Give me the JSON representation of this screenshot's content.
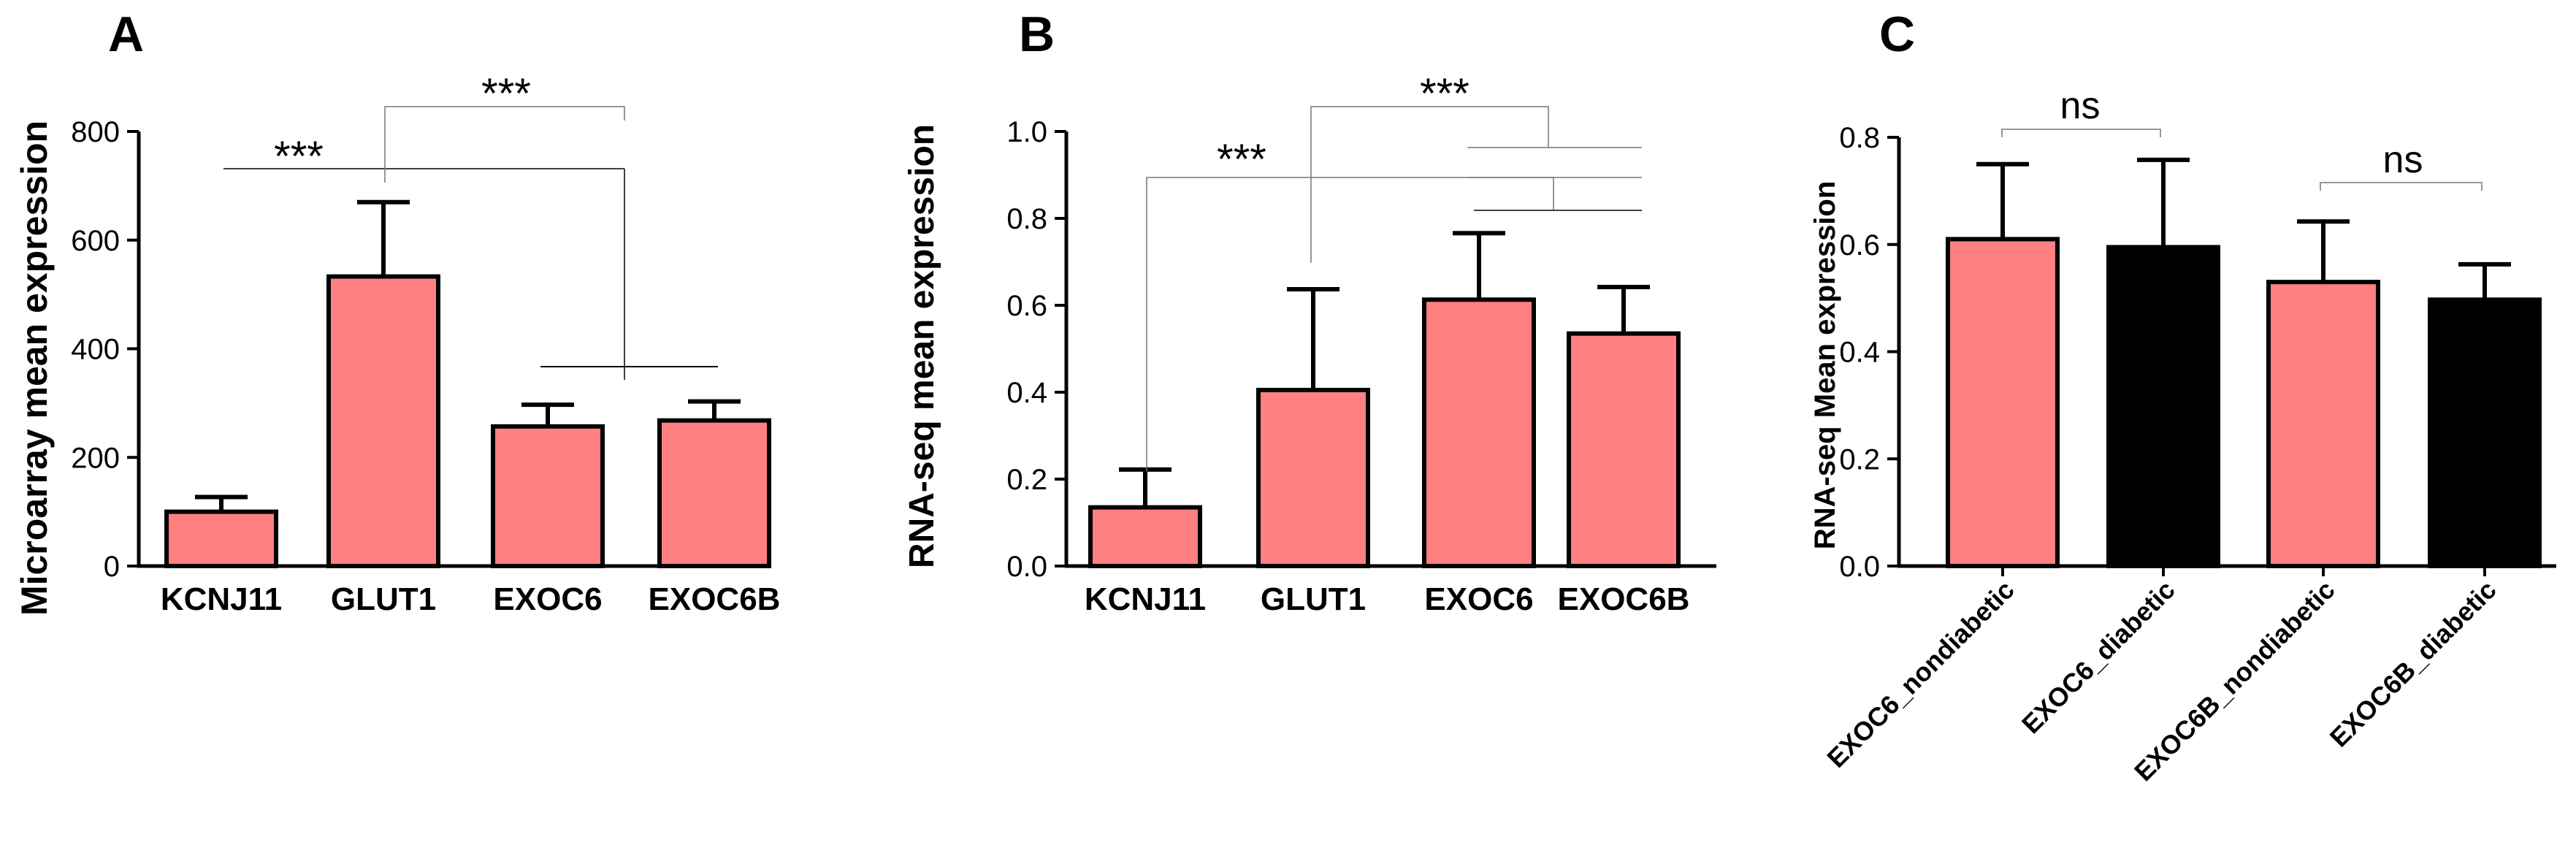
{
  "chart_data": [
    {
      "panel": "A",
      "type": "bar",
      "categories": [
        "KCNJ11",
        "GLUT1",
        "EXOC6",
        "EXOC6B"
      ],
      "values": [
        100,
        533,
        257,
        268
      ],
      "errors": [
        27,
        137,
        40,
        35
      ],
      "colors": [
        "#ff8080",
        "#ff8080",
        "#ff8080",
        "#ff8080"
      ],
      "ylabel": "Microarray mean expression",
      "ylim": [
        0,
        800
      ],
      "yticks": [
        0,
        200,
        400,
        600,
        800
      ],
      "yticklabels": [
        "0",
        "200",
        "400",
        "600",
        "800"
      ],
      "annotations": [
        "***",
        "***"
      ]
    },
    {
      "panel": "B",
      "type": "bar",
      "categories": [
        "KCNJ11",
        "GLUT1",
        "EXOC6",
        "EXOC6B"
      ],
      "values": [
        0.135,
        0.405,
        0.613,
        0.535
      ],
      "errors": [
        0.087,
        0.232,
        0.153,
        0.107
      ],
      "colors": [
        "#ff8080",
        "#ff8080",
        "#ff8080",
        "#ff8080"
      ],
      "ylabel": "RNA-seq mean expression",
      "ylim": [
        0,
        1.0
      ],
      "yticks": [
        0,
        0.2,
        0.4,
        0.6,
        0.8,
        1.0
      ],
      "yticklabels": [
        "0.0",
        "0.2",
        "0.4",
        "0.6",
        "0.8",
        "1.0"
      ],
      "annotations": [
        "***",
        "***"
      ]
    },
    {
      "panel": "C",
      "type": "bar",
      "categories": [
        "EXOC6_nondiabetic",
        "EXOC6_diabetic",
        "EXOC6B_nondiabetic",
        "EXOC6B_diabetic"
      ],
      "values": [
        0.61,
        0.595,
        0.53,
        0.497
      ],
      "errors": [
        0.14,
        0.163,
        0.113,
        0.066
      ],
      "colors": [
        "#ff8080",
        "#000000",
        "#ff8080",
        "#000000"
      ],
      "ylabel": "RNA-seq Mean expression",
      "ylim": [
        0,
        0.8
      ],
      "yticks": [
        0,
        0.2,
        0.4,
        0.6,
        0.8
      ],
      "yticklabels": [
        "0.0",
        "0.2",
        "0.4",
        "0.6",
        "0.8"
      ],
      "annotations": [
        "ns",
        "ns"
      ]
    }
  ]
}
